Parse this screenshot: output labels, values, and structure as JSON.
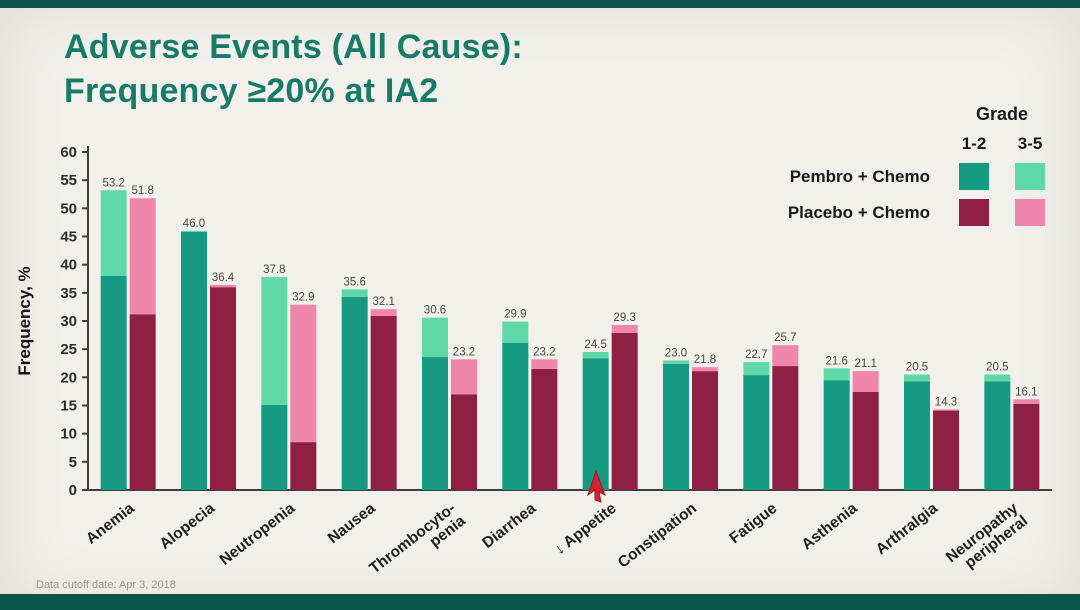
{
  "page": {
    "title_line1": "Adverse Events (All Cause):",
    "title_line2": "Frequency ≥20% at IA2",
    "footer": "Data cutoff date: Apr 3, 2018"
  },
  "legend": {
    "title": "Grade",
    "columns": [
      "1-2",
      "3-5"
    ],
    "rows": [
      {
        "label": "Pembro + Chemo",
        "colors": [
          "#169a82",
          "#5ed7a9"
        ]
      },
      {
        "label": "Placebo + Chemo",
        "colors": [
          "#8e2045",
          "#ef86ab"
        ]
      }
    ]
  },
  "chart_data": {
    "type": "bar",
    "stacked": true,
    "title": "Adverse Events (All Cause): Frequency ≥20% at IA2",
    "xlabel": "",
    "ylabel": "Frequency, %",
    "ylim": [
      0,
      60
    ],
    "ytick_step": 5,
    "grid": false,
    "legend_position": "top-right",
    "colors": {
      "pembro_grade12": "#169a82",
      "pembro_grade35": "#5ed7a9",
      "placebo_grade12": "#8e2045",
      "placebo_grade35": "#ef86ab"
    },
    "categories": [
      "Anemia",
      "Alopecia",
      "Neutropenia",
      "Nausea",
      "Thrombocyto-penia",
      "Diarrhea",
      "↓ Appetite",
      "Constipation",
      "Fatigue",
      "Asthenia",
      "Arthralgia",
      "Neuropathy peripheral"
    ],
    "groups": [
      {
        "lines": [
          "Anemia"
        ],
        "pembro_total": 53.2,
        "pembro_grade12": 38.0,
        "placebo_total": 51.8,
        "placebo_grade12": 31.2
      },
      {
        "lines": [
          "Alopecia"
        ],
        "pembro_total": 46.0,
        "pembro_grade12": 45.8,
        "placebo_total": 36.4,
        "placebo_grade12": 36.0
      },
      {
        "lines": [
          "Neutropenia"
        ],
        "pembro_total": 37.8,
        "pembro_grade12": 15.1,
        "placebo_total": 32.9,
        "placebo_grade12": 8.5
      },
      {
        "lines": [
          "Nausea"
        ],
        "pembro_total": 35.6,
        "pembro_grade12": 34.3,
        "placebo_total": 32.1,
        "placebo_grade12": 30.9
      },
      {
        "lines": [
          "Thrombocyto-",
          "penia"
        ],
        "pembro_total": 30.6,
        "pembro_grade12": 23.6,
        "placebo_total": 23.2,
        "placebo_grade12": 17.0
      },
      {
        "lines": [
          "Diarrhea"
        ],
        "pembro_total": 29.9,
        "pembro_grade12": 26.1,
        "placebo_total": 23.2,
        "placebo_grade12": 21.5
      },
      {
        "lines": [
          "↓ Appetite"
        ],
        "pembro_total": 24.5,
        "pembro_grade12": 23.4,
        "placebo_total": 29.3,
        "placebo_grade12": 27.9
      },
      {
        "lines": [
          "Constipation"
        ],
        "pembro_total": 23.0,
        "pembro_grade12": 22.4,
        "placebo_total": 21.8,
        "placebo_grade12": 21.1
      },
      {
        "lines": [
          "Fatigue"
        ],
        "pembro_total": 22.7,
        "pembro_grade12": 20.4,
        "placebo_total": 25.7,
        "placebo_grade12": 22.0
      },
      {
        "lines": [
          "Asthenia"
        ],
        "pembro_total": 21.6,
        "pembro_grade12": 19.5,
        "placebo_total": 21.1,
        "placebo_grade12": 17.4
      },
      {
        "lines": [
          "Arthralgia"
        ],
        "pembro_total": 20.5,
        "pembro_grade12": 19.3,
        "placebo_total": 14.3,
        "placebo_grade12": 14.1
      },
      {
        "lines": [
          "Neuropathy",
          "peripheral"
        ],
        "pembro_total": 20.5,
        "pembro_grade12": 19.3,
        "placebo_total": 16.1,
        "placebo_grade12": 15.3
      }
    ],
    "series": [
      {
        "name": "Pembro + Chemo (total)",
        "values": [
          53.2,
          46.0,
          37.8,
          35.6,
          30.6,
          29.9,
          24.5,
          23.0,
          22.7,
          21.6,
          20.5,
          20.5
        ]
      },
      {
        "name": "Placebo + Chemo (total)",
        "values": [
          51.8,
          36.4,
          32.9,
          32.1,
          23.2,
          23.2,
          29.3,
          21.8,
          25.7,
          21.1,
          14.3,
          16.1
        ]
      }
    ]
  }
}
